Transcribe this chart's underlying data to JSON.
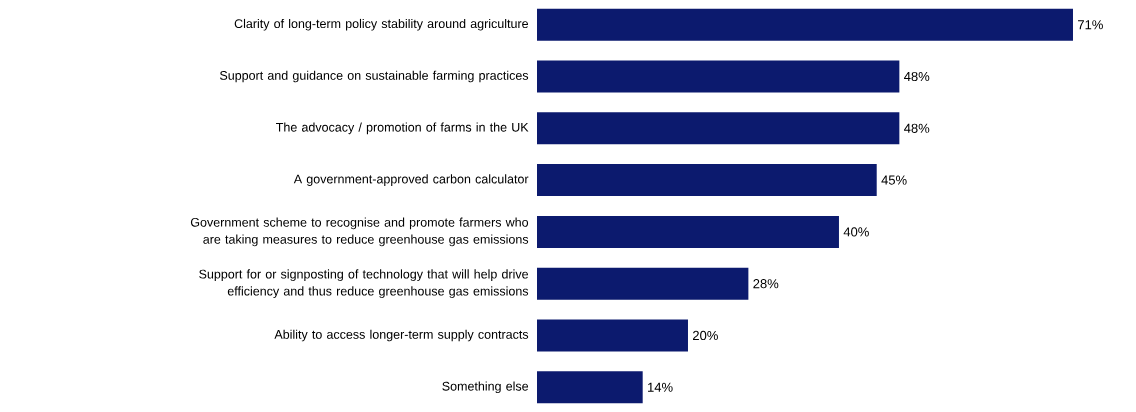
{
  "chart_data": {
    "type": "bar",
    "orientation": "horizontal",
    "categories": [
      "Clarity of long-term policy stability around agriculture",
      "Support and guidance on sustainable farming practices",
      "The advocacy / promotion of farms in the UK",
      "A government-approved carbon calculator",
      "Government scheme to recognise and promote farmers who are taking measures to reduce greenhouse gas  emissions",
      "Support for or signposting of technology that will help drive efficiency and thus reduce greenhouse gas emissions",
      "Ability to access longer-term supply contracts",
      "Something else"
    ],
    "values": [
      71,
      48,
      48,
      45,
      40,
      28,
      20,
      14
    ],
    "value_labels": [
      "71%",
      "48%",
      "48%",
      "45%",
      "40%",
      "28%",
      "20%",
      "14%"
    ],
    "color": "#0c1a6e"
  }
}
